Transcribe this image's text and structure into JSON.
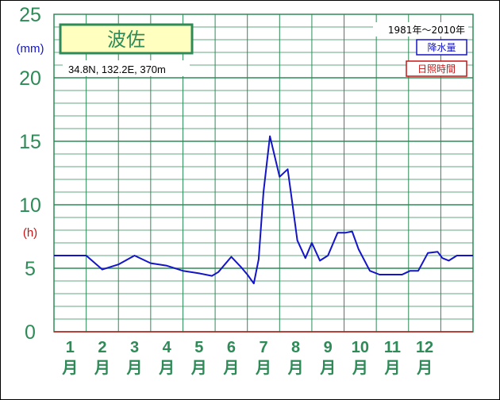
{
  "chart_data": {
    "type": "line",
    "title": "波佐",
    "location": "34.8N, 132.2E, 370m",
    "period": "1981年〜2010年",
    "y_unit_precip": "(mm)",
    "y_unit_sun": "(h)",
    "ylim": [
      0,
      25
    ],
    "yticks": [
      "0",
      "5",
      "10",
      "15",
      "20",
      "25"
    ],
    "months": [
      "1",
      "2",
      "3",
      "4",
      "5",
      "6",
      "7",
      "8",
      "9",
      "10",
      "11",
      "12"
    ],
    "month_suffix": "月",
    "legend": {
      "precip": "降水量",
      "sun": "日照時間"
    },
    "colors": {
      "grid": "#2e8b57",
      "precip": "#1414c8",
      "sun": "#c81414",
      "title_bg": "#ffffc0"
    },
    "series": [
      {
        "name": "降水量",
        "x": [
          0.5,
          1.0,
          1.5,
          2.0,
          2.5,
          3.0,
          3.5,
          4.0,
          4.5,
          5.0,
          5.4,
          5.6,
          6.0,
          6.3,
          6.5,
          6.7,
          6.85,
          7.0,
          7.2,
          7.5,
          7.75,
          7.9,
          8.05,
          8.3,
          8.5,
          8.75,
          9.0,
          9.3,
          9.55,
          9.75,
          9.95,
          10.3,
          10.6,
          10.9,
          11.3,
          11.55,
          11.8,
          12.1,
          12.4,
          12.55,
          12.75,
          13.0,
          13.3,
          13.5
        ],
        "values": [
          6.0,
          6.0,
          6.0,
          4.9,
          5.3,
          6.0,
          5.4,
          5.2,
          4.8,
          4.6,
          4.4,
          4.7,
          5.9,
          5.1,
          4.5,
          3.8,
          5.7,
          11.0,
          15.4,
          12.2,
          12.8,
          10.0,
          7.2,
          5.8,
          7.0,
          5.6,
          6.0,
          7.8,
          7.8,
          7.9,
          6.5,
          4.8,
          4.5,
          4.5,
          4.5,
          4.8,
          4.8,
          6.2,
          6.3,
          5.8,
          5.6,
          6.0,
          6.0,
          6.0
        ]
      }
    ]
  }
}
